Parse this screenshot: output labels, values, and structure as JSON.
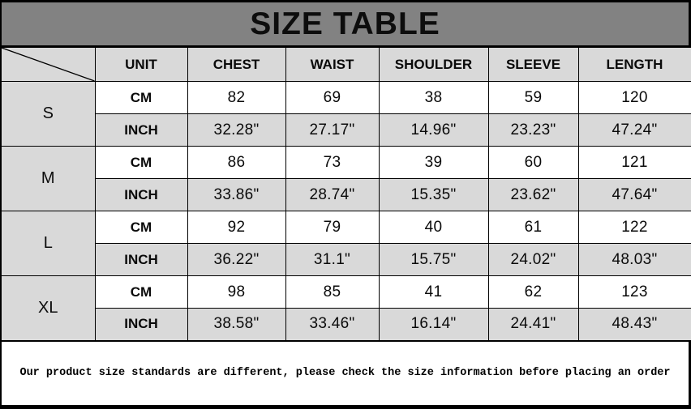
{
  "title": "SIZE TABLE",
  "chart_data": {
    "type": "table",
    "title": "SIZE TABLE",
    "columns": [
      "",
      "UNIT",
      "CHEST",
      "WAIST",
      "SHOULDER",
      "SLEEVE",
      "LENGTH"
    ],
    "row_groups": [
      {
        "size": "S",
        "rows": [
          {
            "unit": "CM",
            "values": [
              "82",
              "69",
              "38",
              "59",
              "120"
            ]
          },
          {
            "unit": "INCH",
            "values": [
              "32.28\"",
              "27.17\"",
              "14.96\"",
              "23.23\"",
              "47.24\""
            ]
          }
        ]
      },
      {
        "size": "M",
        "rows": [
          {
            "unit": "CM",
            "values": [
              "86",
              "73",
              "39",
              "60",
              "121"
            ]
          },
          {
            "unit": "INCH",
            "values": [
              "33.86\"",
              "28.74\"",
              "15.35\"",
              "23.62\"",
              "47.64\""
            ]
          }
        ]
      },
      {
        "size": "L",
        "rows": [
          {
            "unit": "CM",
            "values": [
              "92",
              "79",
              "40",
              "61",
              "122"
            ]
          },
          {
            "unit": "INCH",
            "values": [
              "36.22\"",
              "31.1\"",
              "15.75\"",
              "24.02\"",
              "48.03\""
            ]
          }
        ]
      },
      {
        "size": "XL",
        "rows": [
          {
            "unit": "CM",
            "values": [
              "98",
              "85",
              "41",
              "62",
              "123"
            ]
          },
          {
            "unit": "INCH",
            "values": [
              "38.58\"",
              "33.46\"",
              "16.14\"",
              "24.41\"",
              "48.43\""
            ]
          }
        ]
      }
    ],
    "note": "Our product size standards are different, please check the size information before placing an order"
  },
  "note": "Our product size standards are different, please check the size information before placing an order",
  "colors": {
    "title_bg": "#828282",
    "header_bg": "#d9d9d9",
    "row_bg": "#ffffff",
    "row_alt_bg": "#d9d9d9",
    "border": "#000000",
    "text": "#0a0a0a"
  }
}
